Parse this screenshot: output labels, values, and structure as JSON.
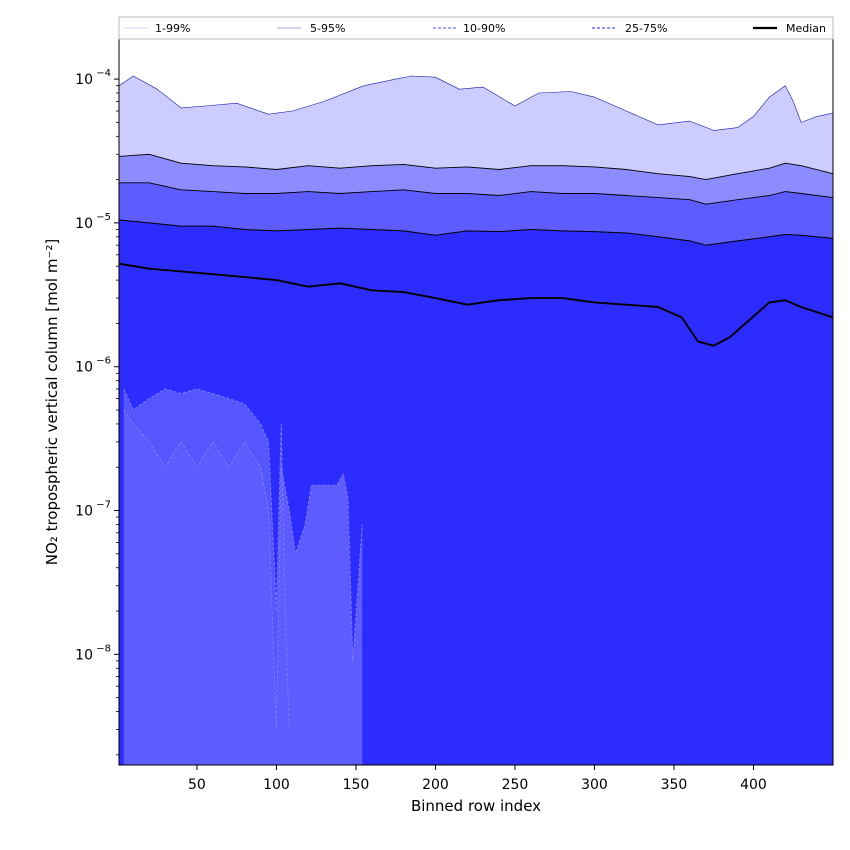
{
  "chart_data": {
    "type": "area",
    "title": "",
    "xlabel": "Binned row index",
    "ylabel": "NO₂ tropospheric vertical column [mol m⁻²]",
    "xlim": [
      1,
      450
    ],
    "ylim": [
      1.7e-09,
      0.00019
    ],
    "yscale": "log",
    "xticks": [
      50,
      100,
      150,
      200,
      250,
      300,
      350,
      400
    ],
    "yticks": [
      {
        "value": 1e-08,
        "base": "10",
        "exp": "−8"
      },
      {
        "value": 1e-07,
        "base": "10",
        "exp": "−7"
      },
      {
        "value": 1e-06,
        "base": "10",
        "exp": "−6"
      },
      {
        "value": 1e-05,
        "base": "10",
        "exp": "−5"
      },
      {
        "value": 0.0001,
        "base": "10",
        "exp": "−4"
      }
    ],
    "grid": false,
    "legend_position": "top, above plot",
    "legend": [
      {
        "label": "1-99%",
        "style": "thin",
        "color": "#c8c8f0"
      },
      {
        "label": "5-95%",
        "style": "thin",
        "color": "#8c8cd8"
      },
      {
        "label": "10-90%",
        "style": "dashed",
        "color": "#7070ff"
      },
      {
        "label": "25-75%",
        "style": "dashed",
        "color": "#5050ff"
      },
      {
        "label": "Median",
        "style": "solid",
        "color": "#000000"
      }
    ],
    "band_colors": {
      "p1_p99": "#5656ff",
      "p5_p95": "#2c2cff",
      "p10_p90": "#5c5cff",
      "p25_p75": "#8c8cff",
      "upper": "#ccccff"
    },
    "series": [
      {
        "name": "99%",
        "x": [
          1,
          10,
          25,
          40,
          55,
          75,
          95,
          110,
          130,
          155,
          175,
          185,
          200,
          215,
          230,
          250,
          265,
          285,
          300,
          320,
          340,
          360,
          375,
          390,
          400,
          410,
          420,
          425,
          430,
          440,
          450
        ],
        "values": [
          9e-05,
          0.000105,
          8.5e-05,
          6.3e-05,
          6.5e-05,
          6.8e-05,
          5.7e-05,
          6e-05,
          7e-05,
          9e-05,
          0.0001,
          0.000105,
          0.000103,
          8.5e-05,
          8.8e-05,
          6.5e-05,
          8e-05,
          8.2e-05,
          7.5e-05,
          6e-05,
          4.8e-05,
          5.1e-05,
          4.4e-05,
          4.6e-05,
          5.5e-05,
          7.5e-05,
          9e-05,
          7e-05,
          5e-05,
          5.5e-05,
          5.8e-05
        ]
      },
      {
        "name": "95%",
        "x": [
          1,
          20,
          40,
          60,
          80,
          100,
          120,
          140,
          160,
          180,
          200,
          220,
          240,
          260,
          280,
          300,
          320,
          340,
          360,
          370,
          390,
          410,
          420,
          430,
          450
        ],
        "values": [
          2.9e-05,
          3e-05,
          2.6e-05,
          2.5e-05,
          2.45e-05,
          2.35e-05,
          2.5e-05,
          2.4e-05,
          2.5e-05,
          2.55e-05,
          2.4e-05,
          2.45e-05,
          2.35e-05,
          2.5e-05,
          2.5e-05,
          2.45e-05,
          2.35e-05,
          2.2e-05,
          2.1e-05,
          2e-05,
          2.2e-05,
          2.4e-05,
          2.6e-05,
          2.5e-05,
          2.2e-05
        ]
      },
      {
        "name": "90%",
        "x": [
          1,
          20,
          40,
          60,
          80,
          100,
          120,
          140,
          160,
          180,
          200,
          220,
          240,
          260,
          280,
          300,
          320,
          340,
          360,
          370,
          390,
          410,
          420,
          430,
          450
        ],
        "values": [
          1.9e-05,
          1.9e-05,
          1.7e-05,
          1.65e-05,
          1.6e-05,
          1.6e-05,
          1.65e-05,
          1.6e-05,
          1.65e-05,
          1.7e-05,
          1.6e-05,
          1.6e-05,
          1.55e-05,
          1.65e-05,
          1.6e-05,
          1.6e-05,
          1.55e-05,
          1.5e-05,
          1.45e-05,
          1.35e-05,
          1.45e-05,
          1.55e-05,
          1.65e-05,
          1.6e-05,
          1.5e-05
        ]
      },
      {
        "name": "75%",
        "x": [
          1,
          20,
          40,
          60,
          80,
          100,
          120,
          140,
          160,
          180,
          200,
          220,
          240,
          260,
          280,
          300,
          320,
          340,
          360,
          370,
          390,
          410,
          420,
          430,
          450
        ],
        "values": [
          1.05e-05,
          1e-05,
          9.5e-06,
          9.5e-06,
          9e-06,
          8.8e-06,
          9e-06,
          9.2e-06,
          9e-06,
          8.8e-06,
          8.2e-06,
          8.8e-06,
          8.7e-06,
          9e-06,
          8.8e-06,
          8.7e-06,
          8.5e-06,
          8e-06,
          7.5e-06,
          7e-06,
          7.5e-06,
          8e-06,
          8.3e-06,
          8.2e-06,
          7.8e-06
        ]
      },
      {
        "name": "Median",
        "x": [
          1,
          20,
          40,
          60,
          80,
          100,
          120,
          140,
          160,
          180,
          200,
          220,
          240,
          260,
          280,
          300,
          320,
          340,
          355,
          365,
          375,
          385,
          395,
          410,
          420,
          430,
          450
        ],
        "values": [
          5.2e-06,
          4.8e-06,
          4.6e-06,
          4.4e-06,
          4.2e-06,
          4e-06,
          3.6e-06,
          3.8e-06,
          3.4e-06,
          3.3e-06,
          3e-06,
          2.7e-06,
          2.9e-06,
          3e-06,
          3e-06,
          2.8e-06,
          2.7e-06,
          2.6e-06,
          2.2e-06,
          1.5e-06,
          1.4e-06,
          1.6e-06,
          2e-06,
          2.8e-06,
          2.9e-06,
          2.6e-06,
          2.2e-06
        ]
      },
      {
        "name": "25%",
        "x": [
          4,
          10,
          20,
          30,
          40,
          50,
          60,
          70,
          80,
          90,
          95,
          100,
          103,
          105,
          108
        ],
        "values": [
          7e-07,
          5e-07,
          6e-07,
          7e-07,
          6.5e-07,
          7e-07,
          6.5e-07,
          6e-07,
          5.5e-07,
          4e-07,
          3e-07,
          2e-08,
          4e-07,
          3e-08,
          3e-09
        ]
      },
      {
        "name": "10%",
        "x": [
          4,
          10,
          20,
          30,
          40,
          50,
          60,
          70,
          80,
          90,
          95,
          100,
          103,
          108,
          112,
          118,
          122,
          138,
          142,
          145,
          148,
          154
        ],
        "values": [
          5e-07,
          4e-07,
          3e-07,
          2e-07,
          3e-07,
          2e-07,
          3e-07,
          2e-07,
          3e-07,
          2e-07,
          1e-07,
          3e-09,
          2e-07,
          1e-07,
          5e-08,
          8e-08,
          1.5e-07,
          1.5e-07,
          1.8e-07,
          1.2e-07,
          9e-09,
          8e-08
        ]
      },
      {
        "name": "5%",
        "x": [
          1,
          20,
          40,
          60,
          80,
          100,
          120,
          140,
          160,
          200,
          300,
          400,
          450
        ],
        "values": [
          1.7e-09,
          1.7e-09,
          1.7e-09,
          1.7e-09,
          1.7e-09,
          1.7e-09,
          1.7e-09,
          1.7e-09,
          1.7e-09,
          1.7e-09,
          1.7e-09,
          1.7e-09,
          1.7e-09
        ]
      }
    ]
  }
}
